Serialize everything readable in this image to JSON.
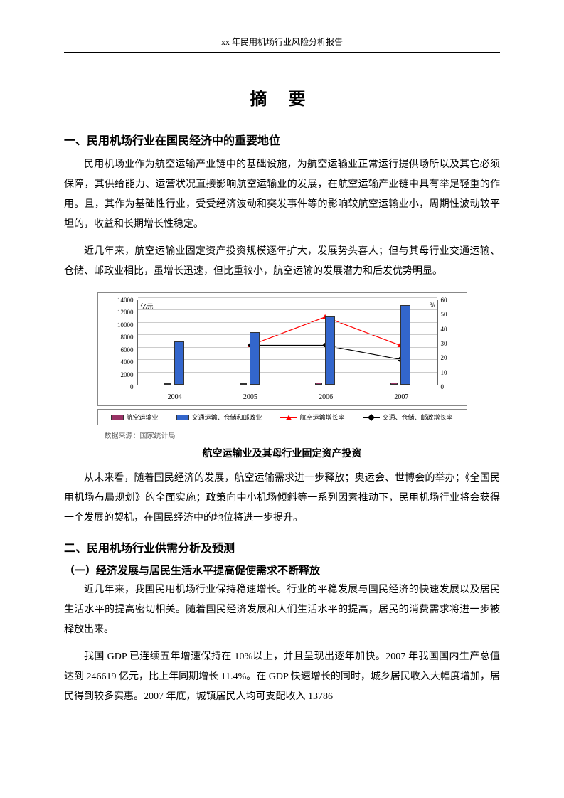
{
  "header": "xx 年民用机场行业风险分析报告",
  "title": "摘  要",
  "section1": {
    "heading": "一、民用机场行业在国民经济中的重要地位",
    "p1": "民用机场业作为航空运输产业链中的基础设施，为航空运输业正常运行提供场所以及其它必须保障，其供给能力、运营状况直接影响航空运输业的发展，在航空运输产业链中具有举足轻重的作用。且，其作为基础性行业，受受经济波动和突发事件等的影响较航空运输业小，周期性波动较平坦的，收益和长期增长性稳定。",
    "p2": "近几年来，航空运输业固定资产投资规模逐年扩大，发展势头喜人；但与其母行业交通运输、仓储、邮政业相比，虽增长迅速，但比重较小，航空运输的发展潜力和后发优势明显。"
  },
  "chart": {
    "type": "bar+line",
    "categories": [
      "2004",
      "2005",
      "2006",
      "2007"
    ],
    "y_left_label": "亿元",
    "y_right_label": "%",
    "y_left_ticks": [
      "0",
      "2000",
      "4000",
      "6000",
      "8000",
      "10000",
      "12000",
      "14000"
    ],
    "y_right_ticks": [
      "0",
      "10",
      "20",
      "30",
      "40",
      "50",
      "60"
    ],
    "ylim_left": [
      0,
      14000
    ],
    "ylim_right": [
      0,
      60
    ],
    "series": {
      "air_transport_bar": {
        "label": "航空运输业",
        "color": "#993366",
        "values": [
          180,
          250,
          300,
          350
        ]
      },
      "parent_industry_bar": {
        "label": "交通运输、仓储和邮政业",
        "color": "#3366cc",
        "values": [
          7000,
          8500,
          11000,
          12800
        ]
      },
      "air_growth_line": {
        "label": "航空运输增长率",
        "color": "#ff0000",
        "marker": "triangle",
        "values": [
          null,
          28,
          48,
          28
        ]
      },
      "parent_growth_line": {
        "label": "交通、仓储、邮政增长率",
        "color": "#000000",
        "marker": "diamond",
        "values": [
          null,
          28,
          28,
          18
        ]
      }
    },
    "source": "数据来源：国家统计局",
    "caption": "航空运输业及其母行业固定资产投资",
    "background_color": "#ffffff",
    "grid_color": "#cccccc",
    "label_fontsize": 9
  },
  "section1b": {
    "p3": "从未来看，随着国民经济的发展，航空运输需求进一步释放；奥运会、世博会的举办；《全国民用机场布局规划》的全面实施；政策向中小机场倾斜等一系列因素推动下，民用机场行业将会获得一个发展的契机，在国民经济中的地位将进一步提升。"
  },
  "section2": {
    "heading": "二、民用机场行业供需分析及预测",
    "sub1": "（一）经济发展与居民生活水平提高促使需求不断释放",
    "p1": "近几年来，我国民用机场行业保持稳速增长。行业的平稳发展与国民经济的快速发展以及居民生活水平的提高密切相关。随着国民经济发展和人们生活水平的提高，居民的消费需求将进一步被释放出来。",
    "p2": "我国 GDP 已连续五年增速保持在 10%以上，并且呈现出逐年加快。2007 年我国国内生产总值达到 246619 亿元，比上年同期增长 11.4%。在 GDP 快速增长的同时，城乡居民收入大幅度增加，居民得到较多实惠。2007 年底，城镇居民人均可支配收入 13786"
  }
}
